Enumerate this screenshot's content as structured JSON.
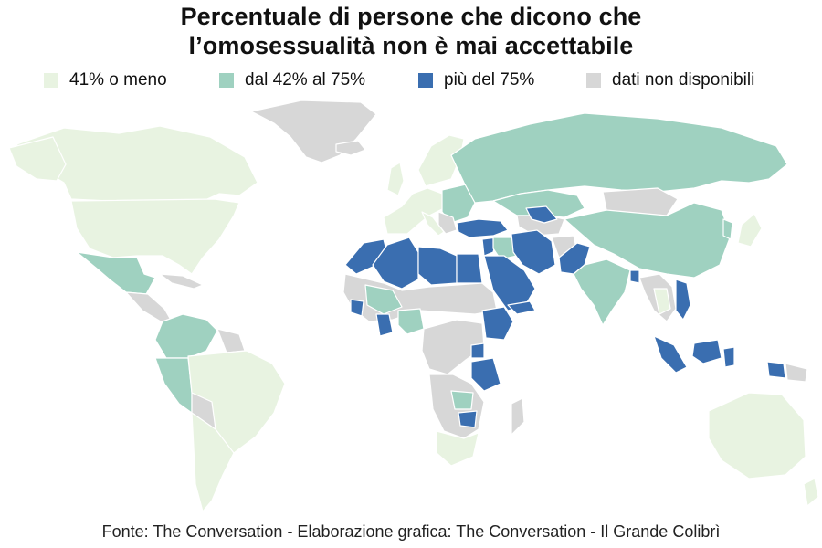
{
  "title": {
    "line1": "Percentuale di persone che dicono che",
    "line2": "l’omosessualità non è mai accettabile"
  },
  "legend": [
    {
      "label": "41% o meno",
      "color": "#e8f3e1"
    },
    {
      "label": "dal 42% al 75%",
      "color": "#9fd1c0"
    },
    {
      "label": "più del 75%",
      "color": "#3a6eb0"
    },
    {
      "label": "dati non disponibili",
      "color": "#d7d7d7"
    }
  ],
  "source": "Fonte: The Conversation - Elaborazione grafica: The Conversation - Il Grande Colibrì"
}
